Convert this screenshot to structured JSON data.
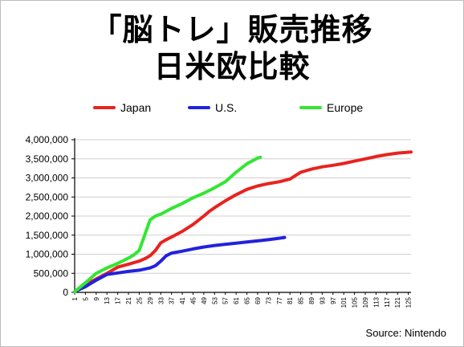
{
  "title_line1": "「脳トレ」販売推移",
  "title_line2": "日米欧比較",
  "source": "Source: Nintendo",
  "chart_data": {
    "type": "line",
    "title": "「脳トレ」販売推移 日米欧比較",
    "xlabel": "",
    "ylabel": "",
    "ylim": [
      0,
      4000000
    ],
    "yticks": [
      0,
      500000,
      1000000,
      1500000,
      2000000,
      2500000,
      3000000,
      3500000,
      4000000
    ],
    "ytick_labels": [
      "0",
      "500,000",
      "1,000,000",
      "1,500,000",
      "2,000,000",
      "2,500,000",
      "3,000,000",
      "3,500,000",
      "4,000,000"
    ],
    "xlim": [
      1,
      126
    ],
    "xticks": [
      1,
      5,
      9,
      13,
      17,
      21,
      25,
      29,
      33,
      37,
      41,
      45,
      49,
      53,
      57,
      61,
      65,
      69,
      73,
      77,
      81,
      85,
      89,
      93,
      97,
      101,
      105,
      109,
      113,
      117,
      121,
      125
    ],
    "grid": true,
    "legend_position": "top",
    "series": [
      {
        "name": "Japan",
        "color": "#e8231f",
        "x": [
          1,
          5,
          9,
          13,
          17,
          21,
          25,
          27,
          29,
          31,
          33,
          35,
          37,
          41,
          45,
          49,
          51,
          53,
          57,
          61,
          65,
          69,
          73,
          77,
          81,
          85,
          89,
          93,
          97,
          101,
          105,
          109,
          113,
          117,
          121,
          126
        ],
        "values": [
          20000,
          200000,
          350000,
          500000,
          660000,
          740000,
          820000,
          880000,
          960000,
          1100000,
          1300000,
          1380000,
          1450000,
          1600000,
          1780000,
          2000000,
          2120000,
          2220000,
          2400000,
          2560000,
          2700000,
          2790000,
          2850000,
          2900000,
          2970000,
          3150000,
          3230000,
          3290000,
          3330000,
          3380000,
          3440000,
          3500000,
          3560000,
          3610000,
          3650000,
          3680000
        ]
      },
      {
        "name": "U.S.",
        "color": "#2222dd",
        "x": [
          1,
          5,
          9,
          13,
          17,
          21,
          25,
          29,
          31,
          33,
          35,
          37,
          41,
          45,
          49,
          53,
          57,
          61,
          65,
          69,
          73,
          77,
          79
        ],
        "values": [
          20000,
          150000,
          320000,
          470000,
          510000,
          550000,
          580000,
          640000,
          700000,
          820000,
          960000,
          1030000,
          1080000,
          1140000,
          1190000,
          1230000,
          1260000,
          1290000,
          1320000,
          1350000,
          1380000,
          1420000,
          1440000
        ]
      },
      {
        "name": "Europe",
        "color": "#33e633",
        "x": [
          1,
          5,
          9,
          13,
          17,
          21,
          23,
          25,
          27,
          29,
          31,
          33,
          37,
          41,
          45,
          49,
          53,
          57,
          61,
          65,
          69,
          70
        ],
        "values": [
          20000,
          250000,
          500000,
          640000,
          760000,
          900000,
          980000,
          1100000,
          1500000,
          1900000,
          2000000,
          2050000,
          2200000,
          2330000,
          2480000,
          2600000,
          2740000,
          2900000,
          3150000,
          3370000,
          3520000,
          3540000
        ]
      }
    ]
  }
}
